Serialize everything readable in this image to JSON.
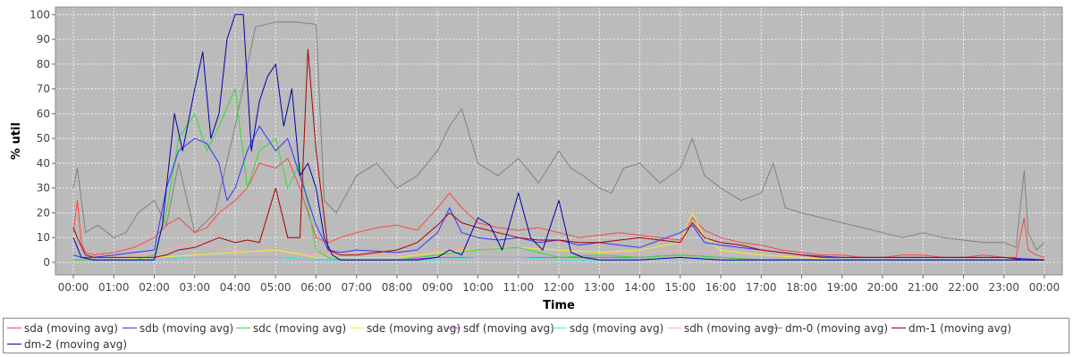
{
  "chart_data": {
    "type": "line",
    "xlabel": "Time",
    "ylabel": "% util",
    "xlim": [
      0,
      24
    ],
    "ylim": [
      0,
      100
    ],
    "x_tick_labels": [
      "00:00",
      "01:00",
      "02:00",
      "03:00",
      "04:00",
      "05:00",
      "06:00",
      "07:00",
      "08:00",
      "09:00",
      "10:00",
      "11:00",
      "12:00",
      "13:00",
      "14:00",
      "15:00",
      "16:00",
      "17:00",
      "18:00",
      "19:00",
      "20:00",
      "21:00",
      "22:00",
      "23:00",
      "00:00"
    ],
    "y_ticks": [
      0,
      10,
      20,
      30,
      40,
      50,
      60,
      70,
      80,
      90,
      100
    ],
    "grid": true,
    "legend_position": "bottom",
    "series": [
      {
        "name": "sda (moving avg)",
        "color": "#ff4444",
        "x": [
          0,
          0.1,
          0.2,
          0.3,
          0.5,
          1,
          1.5,
          2,
          2.3,
          2.6,
          3,
          3.3,
          3.6,
          4,
          4.3,
          4.6,
          5,
          5.3,
          5.6,
          6,
          6.3,
          6.6,
          7,
          7.5,
          8,
          8.5,
          9,
          9.3,
          9.6,
          10,
          10.5,
          11,
          11.5,
          12,
          12.5,
          13,
          13.5,
          14,
          14.5,
          15,
          15.3,
          15.6,
          16,
          16.5,
          17,
          17.5,
          18,
          18.5,
          19,
          19.5,
          20,
          20.5,
          21,
          21.5,
          22,
          22.5,
          23,
          23.3,
          23.5,
          23.6,
          23.8,
          24
        ],
        "y": [
          12,
          25,
          8,
          4,
          3,
          4,
          6,
          10,
          15,
          18,
          12,
          14,
          20,
          25,
          30,
          40,
          38,
          42,
          30,
          10,
          8,
          10,
          12,
          14,
          15,
          13,
          22,
          28,
          22,
          16,
          14,
          13,
          14,
          12,
          10,
          11,
          12,
          11,
          10,
          9,
          18,
          13,
          10,
          8,
          7,
          5,
          4,
          3,
          3,
          2,
          2,
          3,
          3,
          2,
          2,
          3,
          2,
          2,
          18,
          5,
          3,
          2
        ]
      },
      {
        "name": "sdb (moving avg)",
        "color": "#3333ff",
        "x": [
          0,
          0.2,
          0.5,
          1,
          1.5,
          2,
          2.3,
          2.6,
          3,
          3.3,
          3.6,
          3.8,
          4,
          4.3,
          4.6,
          5,
          5.3,
          5.6,
          6,
          6.3,
          6.6,
          7,
          8,
          8.5,
          9,
          9.3,
          9.6,
          10,
          10.5,
          11,
          11.5,
          12,
          12.5,
          13,
          13.5,
          14,
          15,
          15.3,
          15.6,
          16,
          17,
          18,
          19,
          20,
          21,
          22,
          23,
          24
        ],
        "y": [
          3,
          2,
          2,
          3,
          4,
          5,
          30,
          45,
          50,
          48,
          40,
          25,
          30,
          45,
          55,
          45,
          50,
          35,
          15,
          5,
          4,
          5,
          4,
          5,
          12,
          22,
          12,
          10,
          9,
          10,
          8,
          9,
          7,
          8,
          7,
          6,
          12,
          15,
          8,
          7,
          5,
          3,
          2,
          2,
          2,
          2,
          2,
          1
        ]
      },
      {
        "name": "sdc (moving avg)",
        "color": "#33dd33",
        "x": [
          0,
          0.5,
          1,
          1.5,
          2,
          2.3,
          2.6,
          3,
          3.3,
          3.6,
          4,
          4.3,
          4.6,
          5,
          5.3,
          5.6,
          6,
          6.3,
          6.6,
          7,
          8,
          9,
          10,
          11,
          12,
          13,
          14,
          15,
          16,
          17,
          18,
          19,
          20,
          21,
          22,
          23,
          24
        ],
        "y": [
          1,
          1,
          1,
          1,
          3,
          20,
          50,
          60,
          45,
          55,
          70,
          30,
          45,
          50,
          30,
          40,
          5,
          2,
          1,
          1,
          1,
          3,
          5,
          6,
          2,
          3,
          2,
          3,
          2,
          1,
          1,
          1,
          1,
          1,
          1,
          1,
          1
        ]
      },
      {
        "name": "sde (moving avg)",
        "color": "#eeee33",
        "x": [
          0,
          1,
          2,
          3,
          4,
          5,
          6,
          7,
          8,
          9,
          10,
          11,
          12,
          13,
          14,
          15,
          15.3,
          15.6,
          16,
          17,
          18,
          19,
          20,
          21,
          22,
          23,
          24
        ],
        "y": [
          1,
          1,
          2,
          3,
          4,
          5,
          2,
          2,
          2,
          4,
          5,
          6,
          5,
          4,
          5,
          8,
          20,
          10,
          5,
          3,
          2,
          1,
          1,
          1,
          1,
          1,
          1
        ]
      },
      {
        "name": "sdf (moving avg)",
        "color": "#ee33ee",
        "x": [
          0,
          1,
          2,
          3,
          4,
          5,
          6,
          7,
          8,
          9,
          10,
          11,
          12,
          13,
          14,
          15,
          16,
          17,
          18,
          19,
          20,
          21,
          22,
          23,
          24
        ],
        "y": [
          1,
          1,
          1,
          2,
          2,
          2,
          1,
          1,
          1,
          2,
          2,
          2,
          2,
          2,
          2,
          3,
          2,
          1,
          1,
          1,
          1,
          1,
          1,
          1,
          1
        ]
      },
      {
        "name": "sdg (moving avg)",
        "color": "#33eeee",
        "x": [
          0,
          1,
          2,
          3,
          4,
          5,
          6,
          7,
          8,
          9,
          10,
          11,
          12,
          13,
          14,
          15,
          16,
          17,
          18,
          19,
          20,
          21,
          22,
          23,
          24
        ],
        "y": [
          1,
          1,
          1,
          2,
          2,
          2,
          1,
          1,
          1,
          1,
          2,
          2,
          1,
          1,
          1,
          2,
          1,
          1,
          1,
          1,
          1,
          1,
          1,
          1,
          1
        ]
      },
      {
        "name": "sdh (moving avg)",
        "color": "#ffaaaa",
        "x": [
          0,
          1,
          2,
          2.5,
          3,
          3.5,
          4,
          4.5,
          5,
          5.5,
          6,
          7,
          8,
          9,
          10,
          11,
          12,
          13,
          14,
          15,
          16,
          17,
          18,
          19,
          20,
          21,
          22,
          23,
          24
        ],
        "y": [
          2,
          2,
          4,
          6,
          8,
          6,
          5,
          4,
          5,
          4,
          3,
          3,
          3,
          5,
          6,
          6,
          5,
          4,
          4,
          5,
          4,
          3,
          2,
          2,
          2,
          2,
          2,
          2,
          1
        ]
      },
      {
        "name": "dm-0 (moving avg)",
        "color": "#808080",
        "x": [
          0,
          0.1,
          0.3,
          0.6,
          1,
          1.3,
          1.6,
          2,
          2.3,
          2.6,
          3,
          3.5,
          4,
          4.5,
          5,
          5.5,
          6,
          6.2,
          6.5,
          7,
          7.5,
          8,
          8.5,
          9,
          9.3,
          9.6,
          10,
          10.5,
          11,
          11.5,
          12,
          12.3,
          12.6,
          13,
          13.3,
          13.6,
          14,
          14.5,
          15,
          15.3,
          15.6,
          16,
          16.5,
          17,
          17.3,
          17.6,
          18,
          18.5,
          19,
          19.5,
          20,
          20.5,
          21,
          21.5,
          22,
          22.5,
          23,
          23.3,
          23.5,
          23.6,
          23.8,
          24
        ],
        "y": [
          30,
          38,
          12,
          15,
          10,
          12,
          20,
          25,
          15,
          40,
          12,
          20,
          55,
          95,
          97,
          97,
          96,
          25,
          20,
          35,
          40,
          30,
          35,
          45,
          55,
          62,
          40,
          35,
          42,
          32,
          45,
          38,
          35,
          30,
          28,
          38,
          40,
          32,
          38,
          50,
          35,
          30,
          25,
          28,
          40,
          22,
          20,
          18,
          16,
          14,
          12,
          10,
          12,
          10,
          9,
          8,
          8,
          6,
          37,
          12,
          5,
          8
        ]
      },
      {
        "name": "dm-1 (moving avg)",
        "color": "#aa0000",
        "x": [
          0,
          0.1,
          0.3,
          0.5,
          1,
          1.5,
          2,
          2.3,
          2.6,
          3,
          3.3,
          3.6,
          4,
          4.3,
          4.6,
          5,
          5.3,
          5.6,
          5.8,
          6,
          6.3,
          6.6,
          7,
          8,
          8.5,
          9,
          9.3,
          9.6,
          10,
          10.5,
          11,
          11.5,
          12,
          12.5,
          13,
          13.5,
          14,
          14.5,
          15,
          15.3,
          15.6,
          16,
          16.5,
          17,
          17.5,
          18,
          18.5,
          19,
          19.5,
          20,
          20.5,
          21,
          21.5,
          22,
          22.5,
          23,
          23.5,
          24
        ],
        "y": [
          14,
          10,
          3,
          2,
          2,
          2,
          2,
          3,
          5,
          6,
          8,
          10,
          8,
          9,
          8,
          30,
          10,
          10,
          86,
          45,
          5,
          3,
          3,
          5,
          8,
          15,
          20,
          16,
          14,
          12,
          10,
          9,
          9,
          8,
          8,
          9,
          10,
          9,
          8,
          16,
          10,
          8,
          7,
          5,
          4,
          3,
          2,
          2,
          2,
          2,
          2,
          2,
          2,
          2,
          2,
          2,
          1,
          1
        ]
      },
      {
        "name": "dm-2 (moving avg)",
        "color": "#0000aa",
        "x": [
          0,
          0.2,
          0.5,
          1,
          1.5,
          2,
          2.2,
          2.5,
          2.7,
          3,
          3.2,
          3.4,
          3.6,
          3.8,
          4,
          4.2,
          4.4,
          4.6,
          4.8,
          5,
          5.2,
          5.4,
          5.6,
          5.8,
          6,
          6.2,
          6.4,
          6.6,
          7,
          7.5,
          8,
          8.5,
          9,
          9.3,
          9.6,
          10,
          10.3,
          10.6,
          11,
          11.3,
          11.6,
          12,
          12.3,
          12.6,
          13,
          14,
          15,
          16,
          17,
          18,
          19,
          20,
          21,
          22,
          23,
          24
        ],
        "y": [
          10,
          2,
          1,
          1,
          1,
          1,
          15,
          60,
          45,
          70,
          85,
          50,
          60,
          90,
          100,
          100,
          45,
          65,
          75,
          80,
          55,
          70,
          35,
          40,
          30,
          10,
          3,
          1,
          1,
          1,
          1,
          1,
          2,
          5,
          3,
          18,
          15,
          5,
          28,
          10,
          5,
          25,
          4,
          2,
          1,
          1,
          2,
          1,
          1,
          1,
          1,
          1,
          1,
          1,
          1,
          1
        ]
      }
    ]
  }
}
